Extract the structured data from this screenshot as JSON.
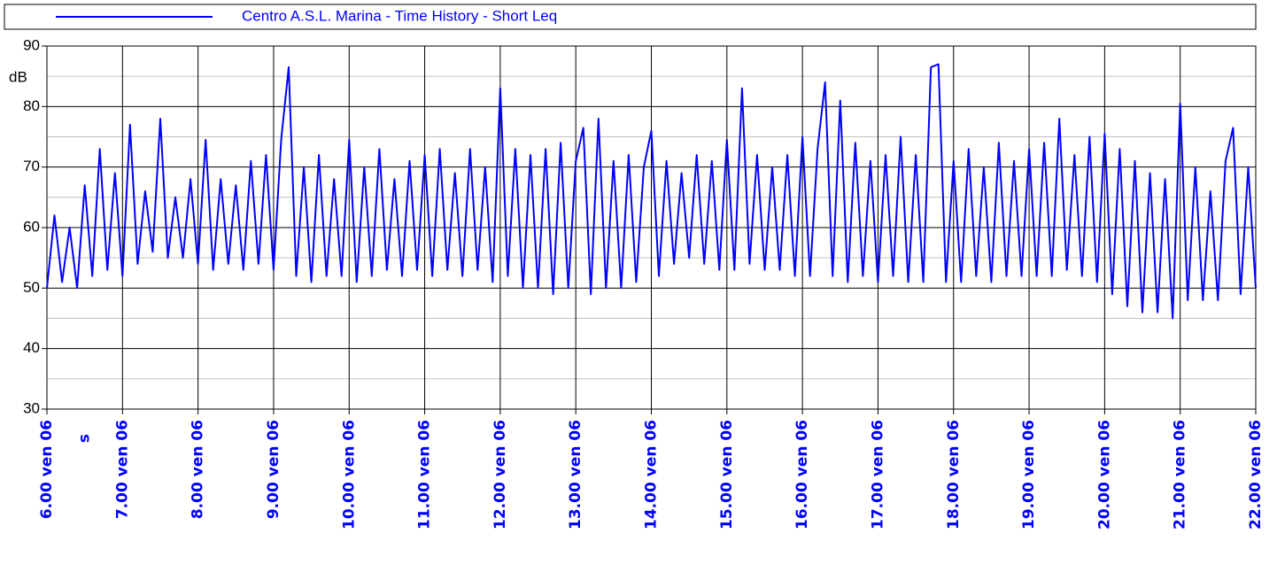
{
  "chart_data": {
    "type": "line",
    "legend": "Centro A.S.L. Marina - Time History - Short Leq",
    "y_label": "dB",
    "annotation": "s",
    "series": [
      {
        "name": "Centro A.S.L. Marina - Time History - Short Leq",
        "color": "#0000ff",
        "values": [
          50,
          62,
          51,
          60,
          50,
          67,
          52,
          73,
          53,
          69,
          52,
          77,
          54,
          66,
          56,
          78,
          55,
          65,
          55,
          68,
          54,
          74.5,
          53,
          68,
          54,
          67,
          53,
          71,
          54,
          72,
          53,
          74.5,
          86.5,
          52,
          70,
          51,
          72,
          52,
          68,
          52,
          74.5,
          51,
          70,
          52,
          73,
          53,
          68,
          52,
          71,
          53,
          72,
          52,
          73,
          53,
          69,
          52,
          73,
          53,
          70,
          51,
          83,
          52,
          73,
          50,
          72,
          50,
          73,
          49,
          74,
          50,
          71,
          76.5,
          49,
          78,
          50,
          71,
          50,
          72,
          51,
          70,
          76,
          52,
          71,
          54,
          69,
          55,
          72,
          54,
          71,
          53,
          74.5,
          53,
          83,
          54,
          72,
          53,
          70,
          53,
          72,
          52,
          75,
          52,
          73,
          84,
          52,
          81,
          51,
          74,
          52,
          71,
          51,
          72,
          52,
          75,
          51,
          72,
          51,
          86.5,
          87,
          51,
          71,
          51,
          73,
          52,
          70,
          51,
          74,
          52,
          71,
          52,
          73,
          52,
          74,
          52,
          78,
          53,
          72,
          52,
          75,
          51,
          75.5,
          49,
          73,
          47,
          71,
          46,
          69,
          46,
          68,
          45,
          80.5,
          48,
          70,
          48,
          66,
          48,
          71,
          76.5,
          49,
          70,
          50
        ]
      }
    ],
    "x": [
      6,
      6.1,
      6.2,
      6.3,
      6.4,
      6.5,
      6.6,
      6.7,
      6.8,
      6.9,
      7,
      7.1,
      7.2,
      7.3,
      7.4,
      7.5,
      7.6,
      7.7,
      7.8,
      7.9,
      8,
      8.1,
      8.2,
      8.3,
      8.4,
      8.5,
      8.6,
      8.7,
      8.8,
      8.9,
      9,
      9.1,
      9.2,
      9.3,
      9.4,
      9.5,
      9.6,
      9.7,
      9.8,
      9.9,
      10,
      10.1,
      10.2,
      10.3,
      10.4,
      10.5,
      10.6,
      10.7,
      10.8,
      10.9,
      11,
      11.1,
      11.2,
      11.3,
      11.4,
      11.5,
      11.6,
      11.7,
      11.8,
      11.9,
      12,
      12.1,
      12.2,
      12.3,
      12.4,
      12.5,
      12.6,
      12.7,
      12.8,
      12.9,
      13,
      13.1,
      13.2,
      13.3,
      13.4,
      13.5,
      13.6,
      13.7,
      13.8,
      13.9,
      14,
      14.1,
      14.2,
      14.3,
      14.4,
      14.5,
      14.6,
      14.7,
      14.8,
      14.9,
      15,
      15.1,
      15.2,
      15.3,
      15.4,
      15.5,
      15.6,
      15.7,
      15.8,
      15.9,
      16,
      16.1,
      16.2,
      16.3,
      16.4,
      16.5,
      16.6,
      16.7,
      16.8,
      16.9,
      17,
      17.1,
      17.2,
      17.3,
      17.4,
      17.5,
      17.6,
      17.7,
      17.8,
      17.9,
      18,
      18.1,
      18.2,
      18.3,
      18.4,
      18.5,
      18.6,
      18.7,
      18.8,
      18.9,
      19,
      19.1,
      19.2,
      19.3,
      19.4,
      19.5,
      19.6,
      19.7,
      19.8,
      19.9,
      20,
      20.1,
      20.2,
      20.3,
      20.4,
      20.5,
      20.6,
      20.7,
      20.8,
      20.9,
      21,
      21.1,
      21.2,
      21.3,
      21.4,
      21.5,
      21.6,
      21.7,
      21.8,
      21.9,
      22
    ],
    "xlim": [
      6,
      22
    ],
    "xticks": [
      {
        "value": 6,
        "label": "6.00 ven 06"
      },
      {
        "value": 7,
        "label": "7.00 ven 06"
      },
      {
        "value": 8,
        "label": "8.00 ven 06"
      },
      {
        "value": 9,
        "label": "9.00 ven 06"
      },
      {
        "value": 10,
        "label": "10.00 ven 06"
      },
      {
        "value": 11,
        "label": "11.00 ven 06"
      },
      {
        "value": 12,
        "label": "12.00 ven 06"
      },
      {
        "value": 13,
        "label": "13.00 ven 06"
      },
      {
        "value": 14,
        "label": "14.00 ven 06"
      },
      {
        "value": 15,
        "label": "15.00 ven 06"
      },
      {
        "value": 16,
        "label": "16.00 ven 06"
      },
      {
        "value": 17,
        "label": "17.00 ven 06"
      },
      {
        "value": 18,
        "label": "18.00 ven 06"
      },
      {
        "value": 19,
        "label": "19.00 ven 06"
      },
      {
        "value": 20,
        "label": "20.00 ven 06"
      },
      {
        "value": 21,
        "label": "21.00 ven 06"
      },
      {
        "value": 22,
        "label": "22.00 ven 06"
      }
    ],
    "ylim": [
      30,
      90
    ],
    "yticks": [
      30,
      40,
      50,
      60,
      70,
      80,
      90
    ],
    "yminor": [
      35,
      45,
      55,
      65,
      75,
      85
    ],
    "grid": true
  }
}
